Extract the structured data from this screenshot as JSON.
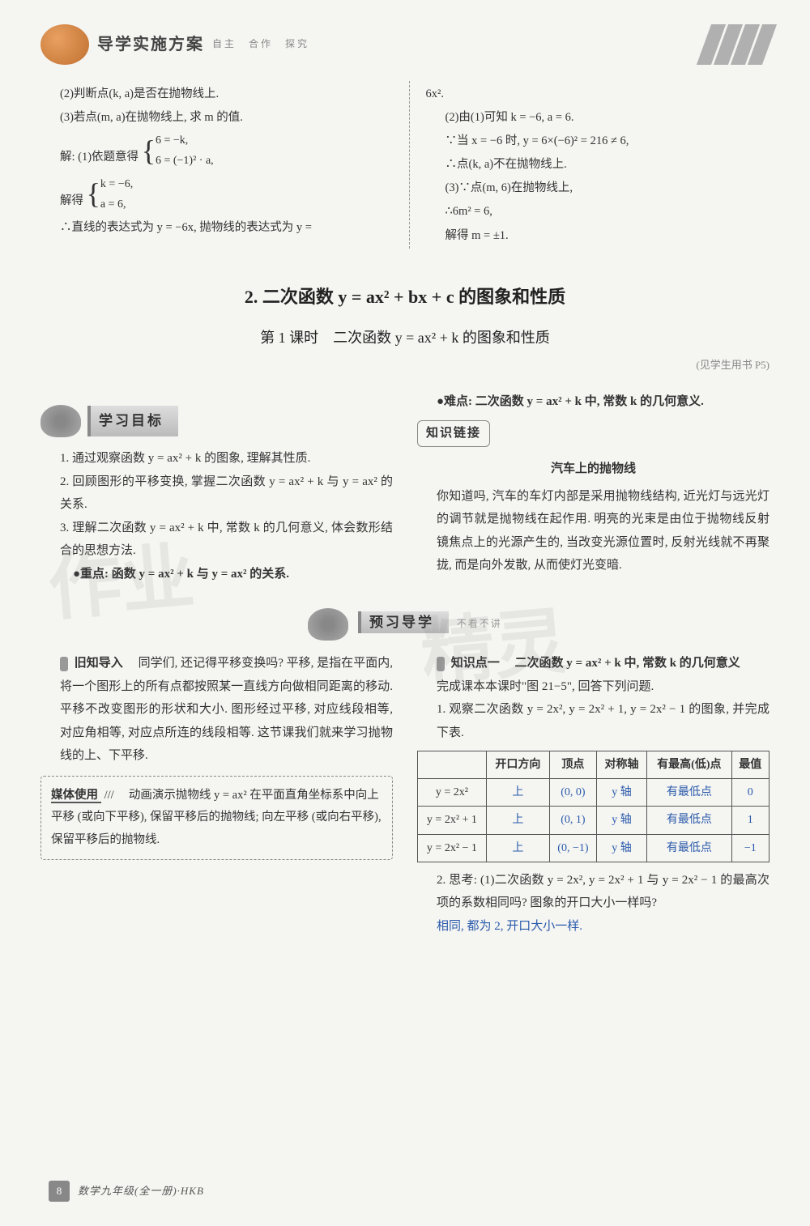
{
  "header": {
    "title": "导学实施方案",
    "subtitle": "自主　合作　探究"
  },
  "top_left": {
    "l1": "(2)判断点(k, a)是否在抛物线上.",
    "l2": "(3)若点(m, a)在抛物线上, 求 m 的值.",
    "l3": "解: (1)依题意得",
    "b1a": "6 = −k,",
    "b1b": "6 = (−1)² · a,",
    "l4": "解得",
    "b2a": "k = −6,",
    "b2b": "a = 6,",
    "l5": "∴直线的表达式为 y = −6x, 抛物线的表达式为 y ="
  },
  "top_right": {
    "l1": "6x².",
    "l2": "(2)由(1)可知 k = −6, a = 6.",
    "l3": "∵当 x = −6 时, y = 6×(−6)² = 216 ≠ 6,",
    "l4": "∴点(k, a)不在抛物线上.",
    "l5": "(3)∵点(m, 6)在抛物线上,",
    "l6": "∴6m² = 6,",
    "l7": "解得 m = ±1."
  },
  "section2": {
    "title": "2. 二次函数 y = ax² + bx + c 的图象和性质",
    "lesson": "第 1 课时　二次函数 y = ax² + k 的图象和性质",
    "page_ref": "(见学生用书 P5)"
  },
  "goals": {
    "label": "学习目标",
    "g1": "1. 通过观察函数 y = ax² + k 的图象, 理解其性质.",
    "g2": "2. 回顾图形的平移变换, 掌握二次函数 y = ax² + k 与 y = ax² 的关系.",
    "g3": "3. 理解二次函数 y = ax² + k 中, 常数 k 的几何意义, 体会数形结合的思想方法.",
    "key": "●重点: 函数 y = ax² + k 与 y = ax² 的关系."
  },
  "right_goals": {
    "hard": "●难点: 二次函数 y = ax² + k 中, 常数 k 的几何意义.",
    "link_label": "知识链接",
    "context_title": "汽车上的抛物线",
    "context": "你知道吗, 汽车的车灯内部是采用抛物线结构, 近光灯与远光灯的调节就是抛物线在起作用. 明亮的光束是由位于抛物线反射镜焦点上的光源产生的, 当改变光源位置时, 反射光线就不再聚拢, 而是向外发散, 从而使灯光变暗."
  },
  "preview": {
    "label": "预习导学",
    "tag": "不看不讲"
  },
  "review": {
    "title": "旧知导入",
    "text": "同学们, 还记得平移变换吗? 平移, 是指在平面内, 将一个图形上的所有点都按照某一直线方向做相同距离的移动. 平移不改变图形的形状和大小. 图形经过平移, 对应线段相等, 对应角相等, 对应点所连的线段相等. 这节课我们就来学习抛物线的上、下平移."
  },
  "media": {
    "label": "媒体使用",
    "text": "动画演示抛物线 y = ax² 在平面直角坐标系中向上平移 (或向下平移), 保留平移后的抛物线; 向左平移 (或向右平移), 保留平移后的抛物线."
  },
  "kp1": {
    "label": "知识点一",
    "title": "二次函数 y = ax² + k 中, 常数 k 的几何意义",
    "intro": "完成课本本课时\"图 21−5\", 回答下列问题.",
    "q1": "1. 观察二次函数 y = 2x², y = 2x² + 1, y = 2x² − 1 的图象, 并完成下表."
  },
  "table": {
    "headers": [
      "",
      "开口方向",
      "顶点",
      "对称轴",
      "有最高(低)点",
      "最值"
    ],
    "rows": [
      {
        "fn": "y = 2x²",
        "dir": "上",
        "vertex": "(0, 0)",
        "axis": "y 轴",
        "hl": "有最低点",
        "val": "0"
      },
      {
        "fn": "y = 2x² + 1",
        "dir": "上",
        "vertex": "(0, 1)",
        "axis": "y 轴",
        "hl": "有最低点",
        "val": "1"
      },
      {
        "fn": "y = 2x² − 1",
        "dir": "上",
        "vertex": "(0, −1)",
        "axis": "y 轴",
        "hl": "有最低点",
        "val": "−1"
      }
    ]
  },
  "q2": {
    "text": "2. 思考: (1)二次函数 y = 2x², y = 2x² + 1 与 y = 2x² − 1 的最高次项的系数相同吗? 图象的开口大小一样吗?",
    "ans": "相同, 都为 2, 开口大小一样."
  },
  "footer": {
    "page": "8",
    "text": "数学九年级(全一册)·HKB"
  },
  "colors": {
    "answer": "#2a5aab",
    "text": "#333333",
    "border": "#555555",
    "bg": "#f5f5f2"
  }
}
